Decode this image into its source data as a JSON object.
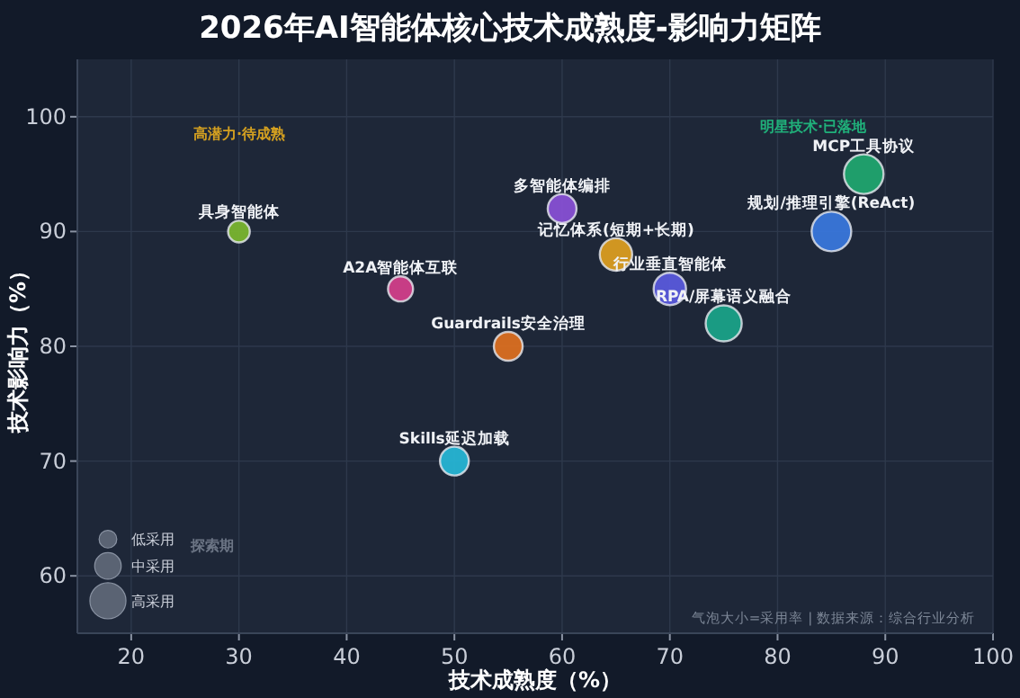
{
  "chart_data": {
    "type": "bubble",
    "title": "2026年AI智能体核心技术成熟度-影响力矩阵",
    "xlabel": "技术成熟度（%）",
    "ylabel": "技术影响力（%）",
    "xlim": [
      15,
      100
    ],
    "xticks": [
      20,
      30,
      40,
      50,
      60,
      70,
      80,
      90,
      100
    ],
    "ylim": [
      55,
      105
    ],
    "yticks": [
      60,
      70,
      80,
      90,
      100
    ],
    "grid": true,
    "series": [
      {
        "x": [
          30,
          45,
          55,
          50,
          60,
          65,
          70,
          75,
          85,
          88
        ],
        "values": [
          90,
          85,
          80,
          70,
          92,
          88,
          85,
          82,
          90,
          95
        ],
        "sizes": [
          0.3,
          0.4,
          0.53,
          0.53,
          0.53,
          0.67,
          0.67,
          0.83,
          1,
          1
        ],
        "colors": [
          "#7cb82f",
          "#d63f8c",
          "#e07020",
          "#26b8d8",
          "#8a50d8",
          "#e0a020",
          "#5a5ae0",
          "#1aa58a",
          "#3a78e0",
          "#20a870"
        ],
        "value_labels": [
          "具身智能体",
          "A2A智能体互联",
          "Guardrails安全治理",
          "Skills延迟加载",
          "多智能体编排",
          "记忆体系(短期+长期)",
          "行业垂直智能体",
          "RPA/屏幕语义融合",
          "规划/推理引擎(ReAct)",
          "MCP工具协议"
        ]
      }
    ],
    "size_legend": [
      {
        "value": 0.2,
        "label": "低采用"
      },
      {
        "value": 0.45,
        "label": "中采用"
      },
      {
        "value": 0.83,
        "label": "高采用"
      }
    ],
    "annotations": [
      "高潜力·待成熟",
      "明星技术·已落地",
      "探索期",
      "气泡大小=采用率 | 数据来源：综合行业分析"
    ]
  }
}
